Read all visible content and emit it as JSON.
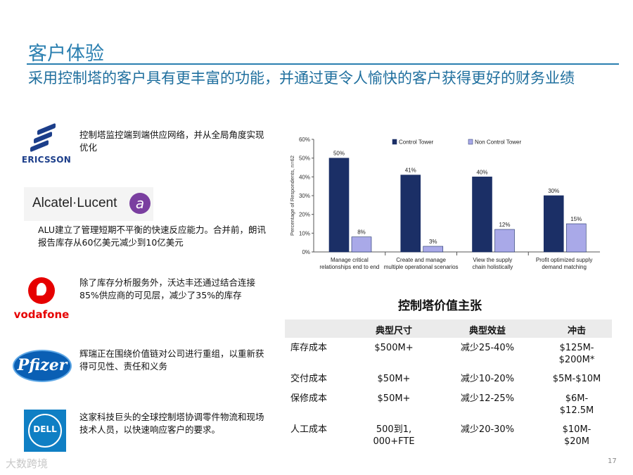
{
  "header": {
    "title": "客户体验",
    "subtitle": "采用控制塔的客户具有更丰富的功能，并通过更令人愉快的客户获得更好的财务业绩"
  },
  "cases": [
    {
      "logo": "Ericsson",
      "logo_text": "ERICSSON",
      "text": "控制塔监控端到端供应网络，并从全局角度实现优化"
    },
    {
      "logo": "Alcatel-Lucent",
      "logo_text": "Alcatel·Lucent",
      "text": "ALU建立了管理短期不平衡的快速反应能力。合并前，朗讯报告库存从60亿美元减少到10亿美元"
    },
    {
      "logo": "Vodafone",
      "logo_text": "vodafone",
      "text": "除了库存分析服务外，沃达丰还通过结合连接85%供应商的可见层，减少了35%的库存"
    },
    {
      "logo": "Pfizer",
      "logo_text": "Pfizer",
      "text": "辉瑞正在围绕价值链对公司进行重组，以重新获得可见性、责任和义务"
    },
    {
      "logo": "Dell",
      "logo_text": "DELL",
      "text": "这家科技巨头的全球控制塔协调零件物流和现场技术人员，以快速响应客户的要求。"
    }
  ],
  "chart_data": {
    "type": "bar",
    "categories": [
      [
        "Manage critical",
        "relationships end to end"
      ],
      [
        "Create and manage",
        "multiple operational scenarios"
      ],
      [
        "View the supply",
        "chain holistically"
      ],
      [
        "Profit optimized supply",
        "demand matching"
      ]
    ],
    "series": [
      {
        "name": "Control Tower",
        "values": [
          50,
          41,
          40,
          30
        ],
        "color": "#1b2f66"
      },
      {
        "name": "Non Control Tower",
        "values": [
          8,
          3,
          12,
          15
        ],
        "color": "#a9a9e8"
      }
    ],
    "data_labels": [
      [
        "50%",
        "41%",
        "40%",
        "30%"
      ],
      [
        "8%",
        "3%",
        "12%",
        "15%"
      ]
    ],
    "ylabel": "Percentage of Respondents, n=62",
    "ylim": [
      0,
      60
    ],
    "yticks": [
      "0%",
      "10%",
      "20%",
      "30%",
      "40%",
      "50%",
      "60%"
    ],
    "legend_position": "top"
  },
  "value_table": {
    "title": "控制塔价值主张",
    "headers": [
      "",
      "典型尺寸",
      "典型效益",
      "冲击"
    ],
    "rows": [
      {
        "name": "库存成本",
        "size": [
          "$500M+"
        ],
        "benefit": [
          "减少25-40%"
        ],
        "impact": [
          "$125M-",
          "$200M*"
        ]
      },
      {
        "name": "交付成本",
        "size": [
          "$50M+"
        ],
        "benefit": [
          "减少10-20%"
        ],
        "impact": [
          "$5M-$10M"
        ]
      },
      {
        "name": "保修成本",
        "size": [
          "$50M+"
        ],
        "benefit": [
          "减少12-25%"
        ],
        "impact": [
          "$6M-",
          "$12.5M"
        ]
      },
      {
        "name": "人工成本",
        "size": [
          "500到1,",
          "000+FTE"
        ],
        "benefit": [
          "减少20-30%"
        ],
        "impact": [
          "$10M-",
          "$20M"
        ]
      }
    ]
  },
  "footer": {
    "watermark": "大数跨境",
    "page_number": "17"
  }
}
